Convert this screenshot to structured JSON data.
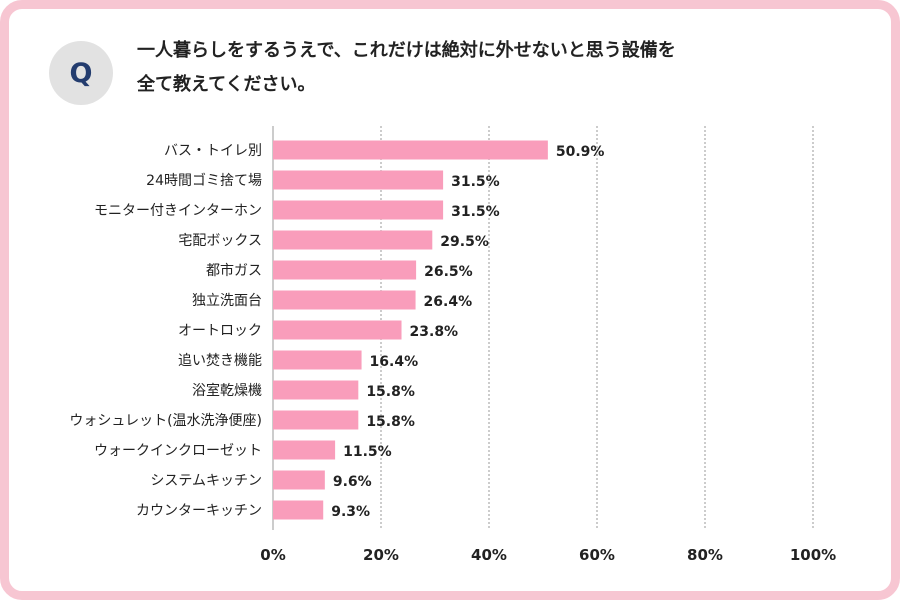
{
  "question": {
    "badge": "Q",
    "line1": "一人暮らしをするうえで、これだけは絶対に外せないと思う設備を",
    "line2": "全て教えてください。"
  },
  "colors": {
    "bar": "#f99dbb",
    "frame": "#f7c6d2",
    "badge_bg": "#e2e2e2",
    "badge_text": "#233c6e",
    "text": "#222222",
    "grid": "#9a9a9a"
  },
  "chart_data": {
    "type": "bar",
    "orientation": "horizontal",
    "categories": [
      "バス・トイレ別",
      "24時間ゴミ捨て場",
      "モニター付きインターホン",
      "宅配ボックス",
      "都市ガス",
      "独立洗面台",
      "オートロック",
      "追い焚き機能",
      "浴室乾燥機",
      "ウォシュレット(温水洗浄便座)",
      "ウォークインクローゼット",
      "システムキッチン",
      "カウンターキッチン"
    ],
    "values": [
      50.9,
      31.5,
      31.5,
      29.5,
      26.5,
      26.4,
      23.8,
      16.4,
      15.8,
      15.8,
      11.5,
      9.6,
      9.3
    ],
    "value_labels": [
      "50.9%",
      "31.5%",
      "31.5%",
      "29.5%",
      "26.5%",
      "26.4%",
      "23.8%",
      "16.4%",
      "15.8%",
      "15.8%",
      "11.5%",
      "9.6%",
      "9.3%"
    ],
    "xlim": [
      0,
      100
    ],
    "xticks": [
      0,
      20,
      40,
      60,
      80,
      100
    ],
    "xtick_labels": [
      "0%",
      "20%",
      "40%",
      "60%",
      "80%",
      "100%"
    ],
    "grid": true,
    "legend": "none"
  }
}
